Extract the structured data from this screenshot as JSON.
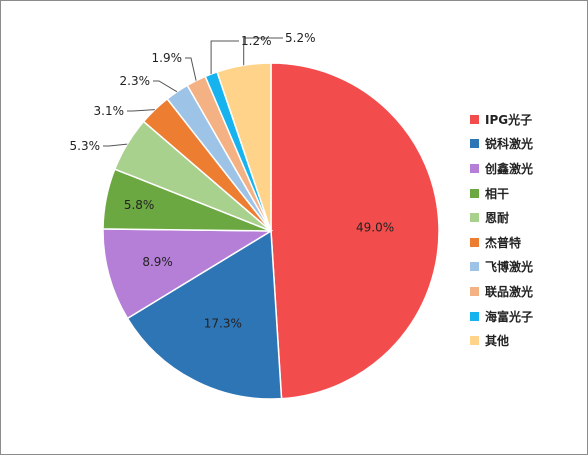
{
  "chart_data": {
    "type": "pie",
    "categories": [
      "IPG光子",
      "锐科激光",
      "创鑫激光",
      "相干",
      "恩耐",
      "杰普特",
      "飞博激光",
      "联品激光",
      "海富光子",
      "其他"
    ],
    "values": [
      49.0,
      17.3,
      8.9,
      5.8,
      5.3,
      3.1,
      2.3,
      1.9,
      1.2,
      5.2
    ],
    "labels": [
      "49.0%",
      "17.3%",
      "8.9%",
      "5.8%",
      "5.3%",
      "3.1%",
      "2.3%",
      "1.9%",
      "1.2%",
      "5.2%"
    ],
    "colors": [
      "#f34c4c",
      "#2e75b6",
      "#b57fd8",
      "#6ca842",
      "#a9d18e",
      "#ed7d31",
      "#9dc3e6",
      "#f4b183",
      "#16b3ee",
      "#ffd48a"
    ],
    "legend_position": "right"
  }
}
